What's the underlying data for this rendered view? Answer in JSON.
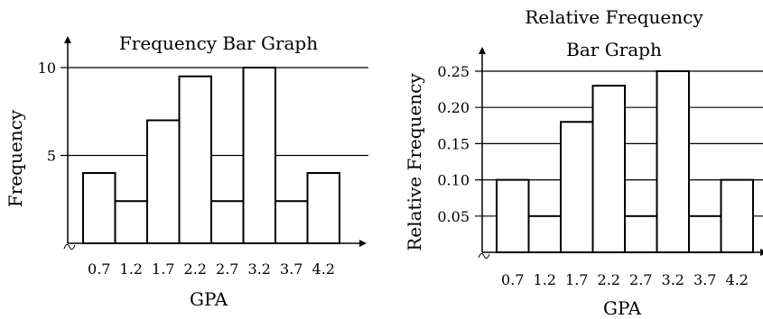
{
  "chart_data": [
    {
      "type": "bar",
      "title": "Frequency Bar Graph",
      "xlabel": "GPA",
      "ylabel": "Frequency",
      "categories": [
        "0.7",
        "1.2",
        "1.7",
        "2.2",
        "2.7",
        "3.2",
        "3.7",
        "4.2"
      ],
      "values": [
        4,
        2.4,
        7,
        9.5,
        2.4,
        10,
        2.4,
        4
      ],
      "yticks": [
        "5",
        "10"
      ],
      "ylim": [
        0,
        12
      ],
      "grid": true
    },
    {
      "type": "bar",
      "title": "Relative Frequency Bar Graph",
      "title_lines": [
        "Relative Frequency",
        "Bar Graph"
      ],
      "xlabel": "GPA",
      "ylabel": "Relative Frequency",
      "categories": [
        "0.7",
        "1.2",
        "1.7",
        "2.2",
        "2.7",
        "3.2",
        "3.7",
        "4.2"
      ],
      "values": [
        0.1,
        0.05,
        0.18,
        0.23,
        0.05,
        0.25,
        0.05,
        0.1
      ],
      "yticks": [
        "0.05",
        "0.10",
        "0.15",
        "0.20",
        "0.25"
      ],
      "ylim": [
        0,
        0.27
      ],
      "grid": true
    }
  ]
}
